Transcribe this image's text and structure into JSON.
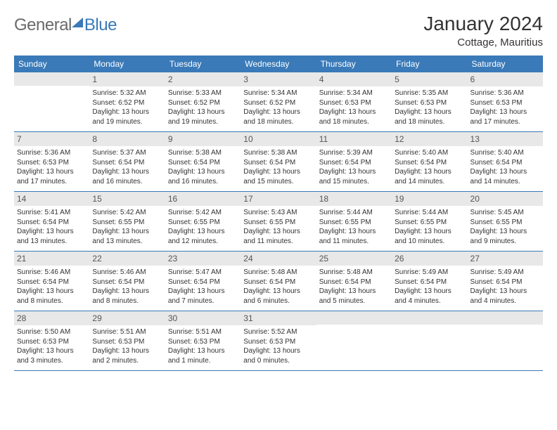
{
  "logo": {
    "part1": "General",
    "part2": "Blue"
  },
  "title": "January 2024",
  "location": "Cottage, Mauritius",
  "colors": {
    "header_bg": "#3a7ab8",
    "header_text": "#ffffff",
    "daynum_bg": "#e8e8e8",
    "text": "#333333",
    "border": "#3a7ab8"
  },
  "weekdays": [
    "Sunday",
    "Monday",
    "Tuesday",
    "Wednesday",
    "Thursday",
    "Friday",
    "Saturday"
  ],
  "weeks": [
    [
      {
        "num": "",
        "lines": []
      },
      {
        "num": "1",
        "lines": [
          "Sunrise: 5:32 AM",
          "Sunset: 6:52 PM",
          "Daylight: 13 hours",
          "and 19 minutes."
        ]
      },
      {
        "num": "2",
        "lines": [
          "Sunrise: 5:33 AM",
          "Sunset: 6:52 PM",
          "Daylight: 13 hours",
          "and 19 minutes."
        ]
      },
      {
        "num": "3",
        "lines": [
          "Sunrise: 5:34 AM",
          "Sunset: 6:52 PM",
          "Daylight: 13 hours",
          "and 18 minutes."
        ]
      },
      {
        "num": "4",
        "lines": [
          "Sunrise: 5:34 AM",
          "Sunset: 6:53 PM",
          "Daylight: 13 hours",
          "and 18 minutes."
        ]
      },
      {
        "num": "5",
        "lines": [
          "Sunrise: 5:35 AM",
          "Sunset: 6:53 PM",
          "Daylight: 13 hours",
          "and 18 minutes."
        ]
      },
      {
        "num": "6",
        "lines": [
          "Sunrise: 5:36 AM",
          "Sunset: 6:53 PM",
          "Daylight: 13 hours",
          "and 17 minutes."
        ]
      }
    ],
    [
      {
        "num": "7",
        "lines": [
          "Sunrise: 5:36 AM",
          "Sunset: 6:53 PM",
          "Daylight: 13 hours",
          "and 17 minutes."
        ]
      },
      {
        "num": "8",
        "lines": [
          "Sunrise: 5:37 AM",
          "Sunset: 6:54 PM",
          "Daylight: 13 hours",
          "and 16 minutes."
        ]
      },
      {
        "num": "9",
        "lines": [
          "Sunrise: 5:38 AM",
          "Sunset: 6:54 PM",
          "Daylight: 13 hours",
          "and 16 minutes."
        ]
      },
      {
        "num": "10",
        "lines": [
          "Sunrise: 5:38 AM",
          "Sunset: 6:54 PM",
          "Daylight: 13 hours",
          "and 15 minutes."
        ]
      },
      {
        "num": "11",
        "lines": [
          "Sunrise: 5:39 AM",
          "Sunset: 6:54 PM",
          "Daylight: 13 hours",
          "and 15 minutes."
        ]
      },
      {
        "num": "12",
        "lines": [
          "Sunrise: 5:40 AM",
          "Sunset: 6:54 PM",
          "Daylight: 13 hours",
          "and 14 minutes."
        ]
      },
      {
        "num": "13",
        "lines": [
          "Sunrise: 5:40 AM",
          "Sunset: 6:54 PM",
          "Daylight: 13 hours",
          "and 14 minutes."
        ]
      }
    ],
    [
      {
        "num": "14",
        "lines": [
          "Sunrise: 5:41 AM",
          "Sunset: 6:54 PM",
          "Daylight: 13 hours",
          "and 13 minutes."
        ]
      },
      {
        "num": "15",
        "lines": [
          "Sunrise: 5:42 AM",
          "Sunset: 6:55 PM",
          "Daylight: 13 hours",
          "and 13 minutes."
        ]
      },
      {
        "num": "16",
        "lines": [
          "Sunrise: 5:42 AM",
          "Sunset: 6:55 PM",
          "Daylight: 13 hours",
          "and 12 minutes."
        ]
      },
      {
        "num": "17",
        "lines": [
          "Sunrise: 5:43 AM",
          "Sunset: 6:55 PM",
          "Daylight: 13 hours",
          "and 11 minutes."
        ]
      },
      {
        "num": "18",
        "lines": [
          "Sunrise: 5:44 AM",
          "Sunset: 6:55 PM",
          "Daylight: 13 hours",
          "and 11 minutes."
        ]
      },
      {
        "num": "19",
        "lines": [
          "Sunrise: 5:44 AM",
          "Sunset: 6:55 PM",
          "Daylight: 13 hours",
          "and 10 minutes."
        ]
      },
      {
        "num": "20",
        "lines": [
          "Sunrise: 5:45 AM",
          "Sunset: 6:55 PM",
          "Daylight: 13 hours",
          "and 9 minutes."
        ]
      }
    ],
    [
      {
        "num": "21",
        "lines": [
          "Sunrise: 5:46 AM",
          "Sunset: 6:54 PM",
          "Daylight: 13 hours",
          "and 8 minutes."
        ]
      },
      {
        "num": "22",
        "lines": [
          "Sunrise: 5:46 AM",
          "Sunset: 6:54 PM",
          "Daylight: 13 hours",
          "and 8 minutes."
        ]
      },
      {
        "num": "23",
        "lines": [
          "Sunrise: 5:47 AM",
          "Sunset: 6:54 PM",
          "Daylight: 13 hours",
          "and 7 minutes."
        ]
      },
      {
        "num": "24",
        "lines": [
          "Sunrise: 5:48 AM",
          "Sunset: 6:54 PM",
          "Daylight: 13 hours",
          "and 6 minutes."
        ]
      },
      {
        "num": "25",
        "lines": [
          "Sunrise: 5:48 AM",
          "Sunset: 6:54 PM",
          "Daylight: 13 hours",
          "and 5 minutes."
        ]
      },
      {
        "num": "26",
        "lines": [
          "Sunrise: 5:49 AM",
          "Sunset: 6:54 PM",
          "Daylight: 13 hours",
          "and 4 minutes."
        ]
      },
      {
        "num": "27",
        "lines": [
          "Sunrise: 5:49 AM",
          "Sunset: 6:54 PM",
          "Daylight: 13 hours",
          "and 4 minutes."
        ]
      }
    ],
    [
      {
        "num": "28",
        "lines": [
          "Sunrise: 5:50 AM",
          "Sunset: 6:53 PM",
          "Daylight: 13 hours",
          "and 3 minutes."
        ]
      },
      {
        "num": "29",
        "lines": [
          "Sunrise: 5:51 AM",
          "Sunset: 6:53 PM",
          "Daylight: 13 hours",
          "and 2 minutes."
        ]
      },
      {
        "num": "30",
        "lines": [
          "Sunrise: 5:51 AM",
          "Sunset: 6:53 PM",
          "Daylight: 13 hours",
          "and 1 minute."
        ]
      },
      {
        "num": "31",
        "lines": [
          "Sunrise: 5:52 AM",
          "Sunset: 6:53 PM",
          "Daylight: 13 hours",
          "and 0 minutes."
        ]
      },
      {
        "num": "",
        "lines": []
      },
      {
        "num": "",
        "lines": []
      },
      {
        "num": "",
        "lines": []
      }
    ]
  ]
}
